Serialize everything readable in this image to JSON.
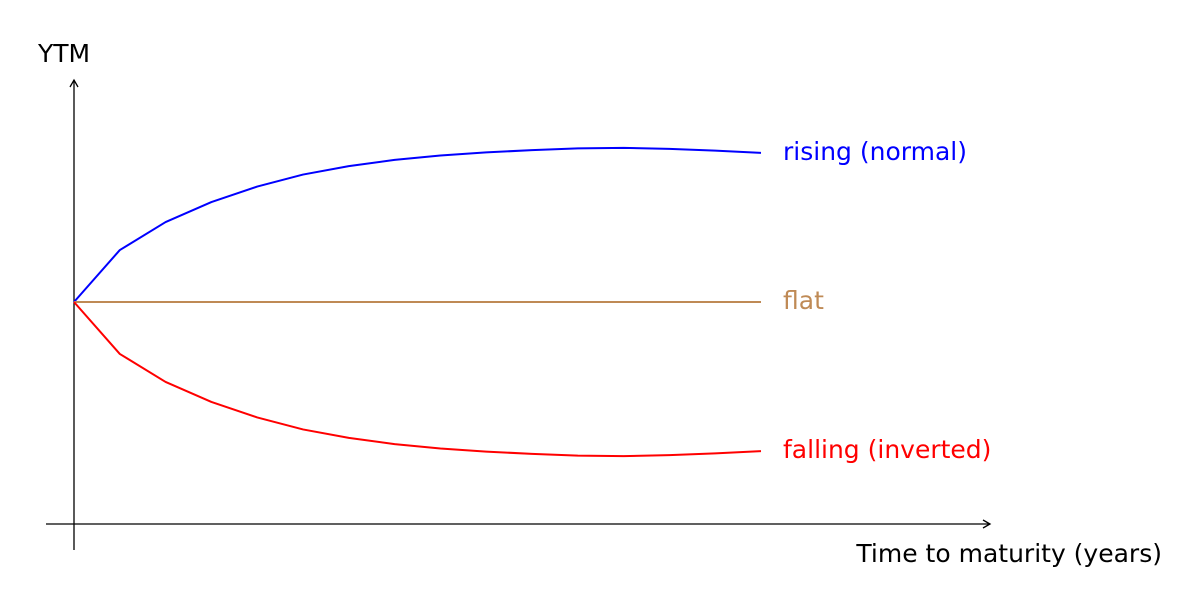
{
  "chart_data": {
    "type": "line",
    "y_label": "YTM",
    "x_label": "Time to maturity (years)",
    "x": [
      0,
      0.5,
      1,
      1.5,
      2,
      2.5,
      3,
      3.5,
      4,
      4.5,
      5,
      5.5,
      6,
      6.5,
      7,
      7.5
    ],
    "xlim": [
      0,
      10
    ],
    "ylim": [
      0,
      10
    ],
    "series": [
      {
        "name": "rising (normal)",
        "color": "#0000ff",
        "values": [
          5.0,
          6.17,
          6.8,
          7.25,
          7.6,
          7.87,
          8.06,
          8.2,
          8.3,
          8.37,
          8.42,
          8.46,
          8.47,
          8.45,
          8.41,
          8.36
        ]
      },
      {
        "name": "flat",
        "color": "#bf8a55",
        "values": [
          5,
          5,
          5,
          5,
          5,
          5,
          5,
          5,
          5,
          5,
          5,
          5,
          5,
          5,
          5,
          5
        ]
      },
      {
        "name": "falling (inverted)",
        "color": "#ff0000",
        "values": [
          5.0,
          3.83,
          3.2,
          2.75,
          2.4,
          2.13,
          1.94,
          1.8,
          1.7,
          1.63,
          1.58,
          1.54,
          1.53,
          1.55,
          1.59,
          1.64
        ]
      }
    ]
  }
}
